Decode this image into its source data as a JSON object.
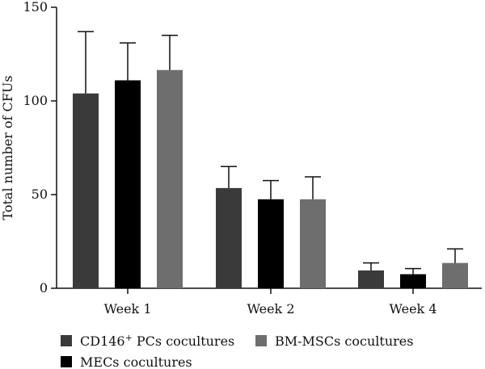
{
  "chart_data": {
    "type": "bar",
    "title": "",
    "xlabel": "",
    "ylabel": "Total number of CFUs",
    "ylim": [
      0,
      150
    ],
    "yticks": [
      0,
      50,
      100,
      150
    ],
    "categories": [
      "Week 1",
      "Week 2",
      "Week 4"
    ],
    "series": [
      {
        "name": "CD146",
        "name_sup": "+",
        "name_rest": " PCs cocultures",
        "color": "#3a3a3a",
        "values": [
          104,
          53.5,
          9.5
        ],
        "error_upper": [
          137,
          65,
          13.5
        ]
      },
      {
        "name": "MECs cocultures",
        "color": "#000000",
        "values": [
          111,
          47.5,
          7.5
        ],
        "error_upper": [
          131,
          57.5,
          10.5
        ]
      },
      {
        "name": "BM-MSCs cocultures",
        "color": "#6e6e6e",
        "values": [
          116.5,
          47.5,
          13.5
        ],
        "error_upper": [
          135,
          59.5,
          21
        ]
      }
    ],
    "legend": "bottom",
    "grid": false
  }
}
